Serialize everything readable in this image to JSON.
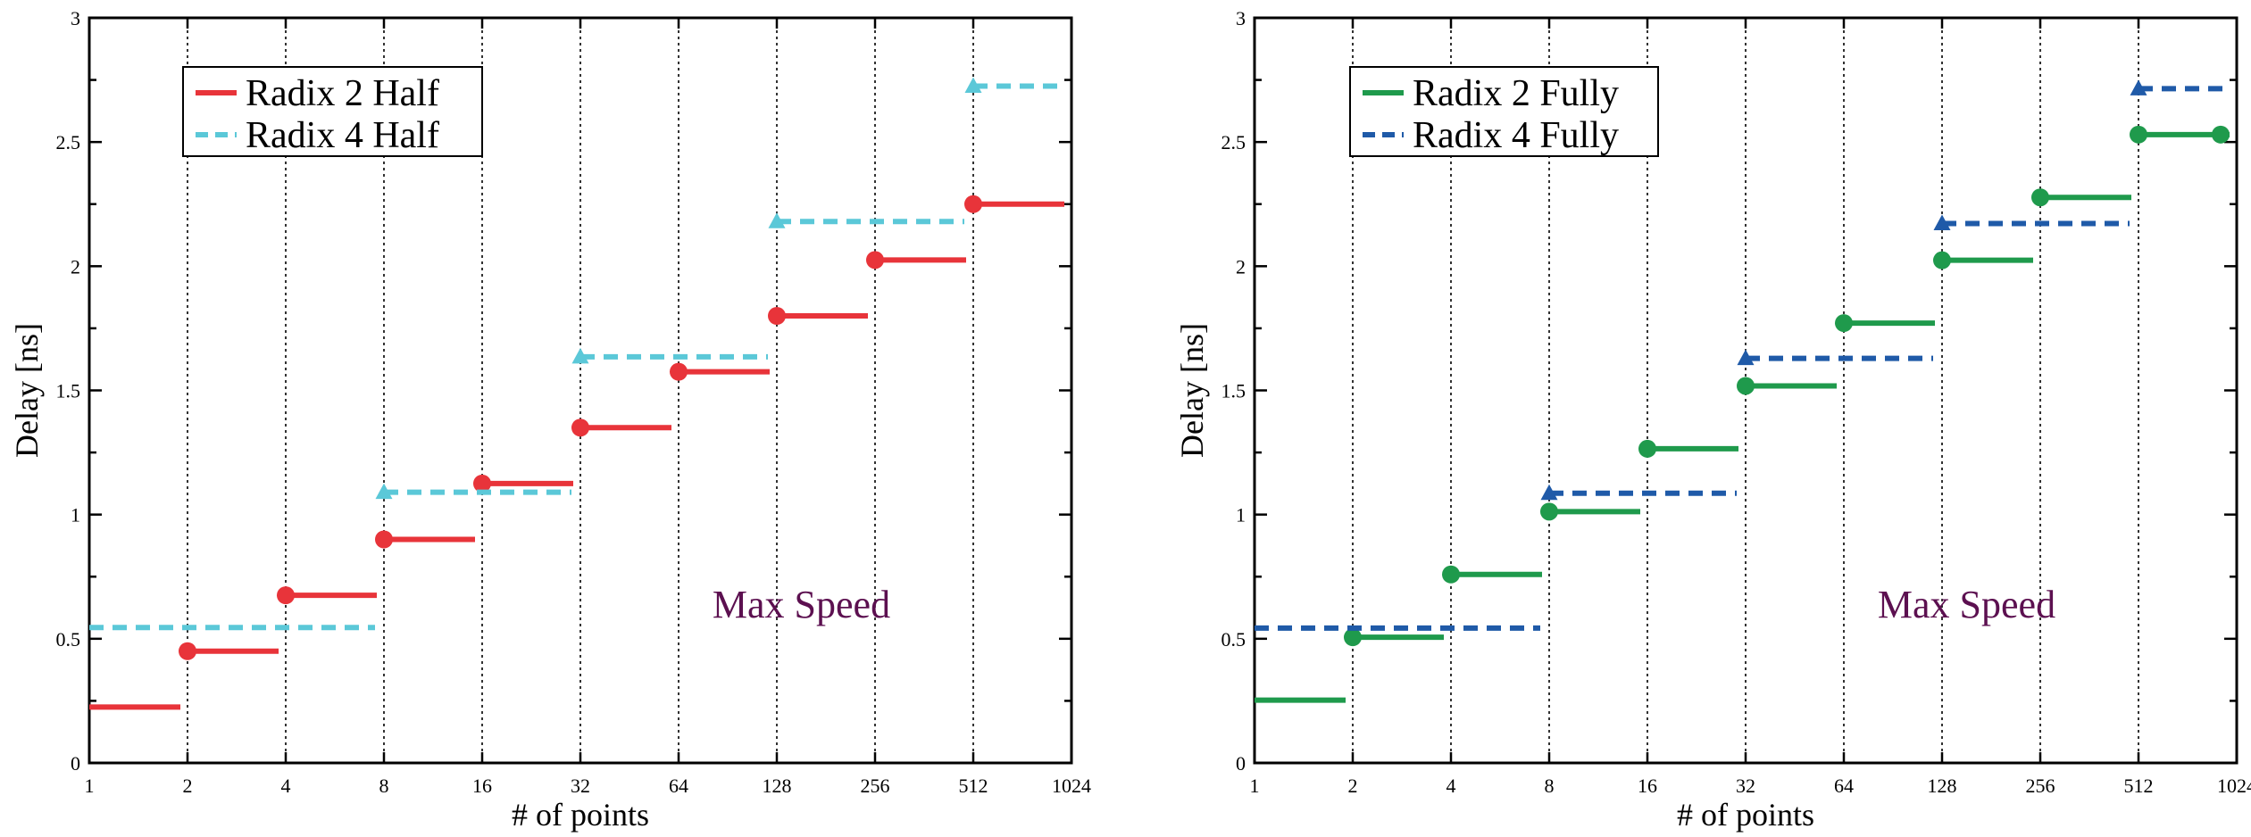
{
  "chart_data": [
    {
      "type": "line",
      "step": true,
      "title": "",
      "xlabel": "# of points",
      "ylabel": "Delay [ns]",
      "ylim": [
        0,
        3
      ],
      "x_categories": [
        "1",
        "2",
        "4",
        "8",
        "16",
        "32",
        "64",
        "128",
        "256",
        "512",
        "1024"
      ],
      "y_ticks": [
        "0",
        "0.5",
        "1",
        "1.5",
        "2",
        "2.5",
        "3"
      ],
      "grid": "vertical dotted",
      "legend_position": "top-left",
      "annotation": "Max Speed",
      "annotation_color": "#5c1050",
      "series": [
        {
          "name": "Radix 2 Half",
          "color": "#e8343a",
          "style": "solid",
          "marker": "circle",
          "steps": [
            {
              "x_from": "1",
              "x_to": "2",
              "value": 0.225,
              "marker": false
            },
            {
              "x_from": "2",
              "x_to": "4",
              "value": 0.45
            },
            {
              "x_from": "4",
              "x_to": "8",
              "value": 0.675
            },
            {
              "x_from": "8",
              "x_to": "16",
              "value": 0.9
            },
            {
              "x_from": "16",
              "x_to": "32",
              "value": 1.125
            },
            {
              "x_from": "32",
              "x_to": "64",
              "value": 1.35
            },
            {
              "x_from": "64",
              "x_to": "128",
              "value": 1.575
            },
            {
              "x_from": "128",
              "x_to": "256",
              "value": 1.8
            },
            {
              "x_from": "256",
              "x_to": "512",
              "value": 2.025
            },
            {
              "x_from": "512",
              "x_to": "1024",
              "value": 2.25
            }
          ]
        },
        {
          "name": "Radix 4 Half",
          "color": "#5bc8d8",
          "style": "dashed",
          "marker": "triangle",
          "steps": [
            {
              "x_from": "1",
              "x_to": "8",
              "value": 0.545,
              "marker": false
            },
            {
              "x_from": "8",
              "x_to": "32",
              "value": 1.09
            },
            {
              "x_from": "32",
              "x_to": "128",
              "value": 1.635
            },
            {
              "x_from": "128",
              "x_to": "512",
              "value": 2.18
            },
            {
              "x_from": "512",
              "x_to": "1024",
              "value": 2.725
            }
          ]
        }
      ]
    },
    {
      "type": "line",
      "step": true,
      "title": "",
      "xlabel": "# of points",
      "ylabel": "Delay [ns]",
      "ylim": [
        0,
        3
      ],
      "x_categories": [
        "1",
        "2",
        "4",
        "8",
        "16",
        "32",
        "64",
        "128",
        "256",
        "512",
        "1024"
      ],
      "y_ticks": [
        "0",
        "0.5",
        "1",
        "1.5",
        "2",
        "2.5",
        "3"
      ],
      "grid": "vertical dotted",
      "legend_position": "top-left",
      "annotation": "Max Speed",
      "annotation_color": "#5c1050",
      "series": [
        {
          "name": "Radix 2 Fully",
          "color": "#1f9a4c",
          "style": "solid",
          "marker": "circle",
          "steps": [
            {
              "x_from": "1",
              "x_to": "2",
              "value": 0.253,
              "marker": false
            },
            {
              "x_from": "2",
              "x_to": "4",
              "value": 0.506
            },
            {
              "x_from": "4",
              "x_to": "8",
              "value": 0.759
            },
            {
              "x_from": "8",
              "x_to": "16",
              "value": 1.012
            },
            {
              "x_from": "16",
              "x_to": "32",
              "value": 1.265
            },
            {
              "x_from": "32",
              "x_to": "64",
              "value": 1.518
            },
            {
              "x_from": "64",
              "x_to": "128",
              "value": 1.771
            },
            {
              "x_from": "128",
              "x_to": "256",
              "value": 2.024
            },
            {
              "x_from": "256",
              "x_to": "512",
              "value": 2.277
            },
            {
              "x_from": "512",
              "x_to": "1024",
              "value": 2.53,
              "end_marker": true
            }
          ]
        },
        {
          "name": "Radix 4 Fully",
          "color": "#1f5aa8",
          "style": "dashed",
          "marker": "triangle",
          "steps": [
            {
              "x_from": "1",
              "x_to": "8",
              "value": 0.543,
              "marker": false
            },
            {
              "x_from": "8",
              "x_to": "32",
              "value": 1.086
            },
            {
              "x_from": "32",
              "x_to": "128",
              "value": 1.629
            },
            {
              "x_from": "128",
              "x_to": "512",
              "value": 2.172
            },
            {
              "x_from": "512",
              "x_to": "1024",
              "value": 2.715
            }
          ]
        }
      ]
    }
  ]
}
